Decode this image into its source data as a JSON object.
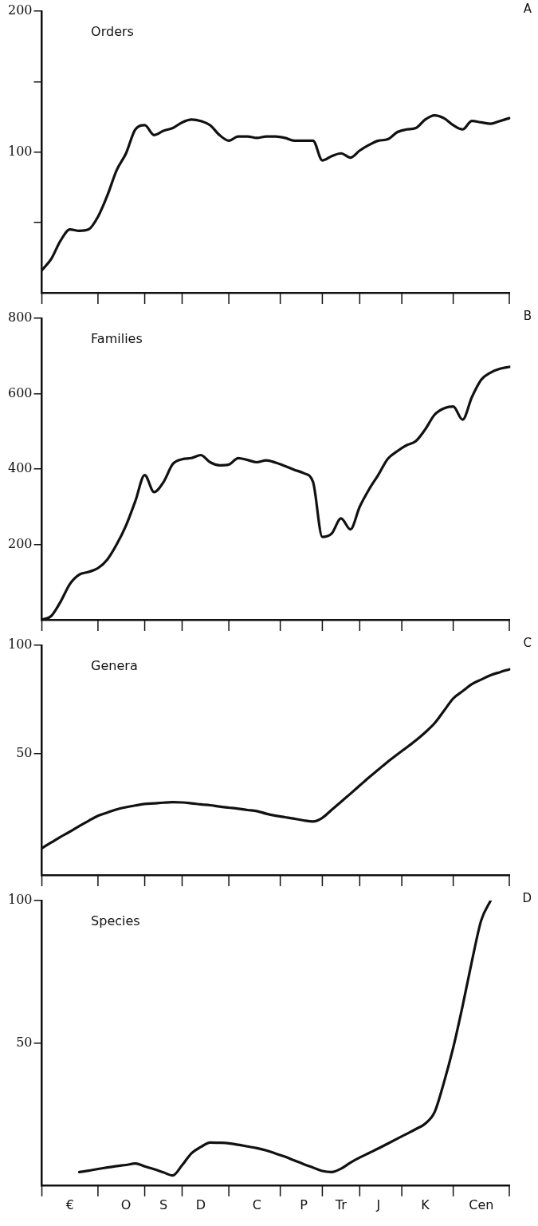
{
  "chart_data": [
    {
      "type": "line",
      "title": "Orders",
      "annotations": [
        "A"
      ],
      "ylim": [
        0,
        200
      ],
      "tick_labels": "y",
      "categories": [
        null,
        null,
        null,
        null,
        null,
        null,
        null,
        null,
        null,
        null,
        null,
        null,
        null,
        null,
        null,
        null,
        null,
        null,
        null,
        null,
        null,
        null,
        null,
        null,
        null,
        null,
        null,
        null,
        null,
        null,
        null,
        null,
        null,
        null,
        null,
        null,
        null,
        null,
        null,
        null,
        null,
        null,
        null,
        null,
        null,
        null,
        null,
        null,
        null,
        null,
        null
      ],
      "yticks": [
        {
          "value": 50,
          "label": null
        },
        100,
        {
          "value": 150,
          "label": null
        },
        200
      ],
      "series": [
        {
          "color": "#111111",
          "values": [
            16,
            24,
            37,
            45,
            44,
            45,
            54,
            69,
            87,
            99,
            116,
            119,
            112,
            115,
            117,
            121,
            123,
            122,
            119,
            112,
            108,
            111,
            111,
            110,
            111,
            111,
            110,
            108,
            108,
            108,
            94,
            97,
            99,
            96,
            101,
            105,
            108,
            109,
            114,
            116,
            117,
            123,
            126,
            124,
            119,
            116,
            122,
            121,
            120,
            122,
            124
          ]
        }
      ]
    },
    {
      "type": "line",
      "title": "Families",
      "annotations": [
        "B"
      ],
      "ylim": [
        0,
        800
      ],
      "tick_labels": "y",
      "categories": [
        null,
        null,
        null,
        null,
        null,
        null,
        null,
        null,
        null,
        null,
        null,
        null,
        null,
        null,
        null,
        null,
        null,
        null,
        null,
        null,
        null,
        null,
        null,
        null,
        null,
        null,
        null,
        null,
        null,
        null,
        null,
        null,
        null,
        null,
        null,
        null,
        null,
        null,
        null,
        null,
        null,
        null,
        null,
        null,
        null,
        null,
        null,
        null,
        null,
        null,
        null
      ],
      "yticks": [
        200,
        400,
        600,
        800
      ],
      "series": [
        {
          "color": "#111111",
          "values": [
            0,
            10,
            48,
            95,
            120,
            127,
            137,
            160,
            200,
            250,
            315,
            384,
            339,
            365,
            413,
            426,
            429,
            437,
            418,
            410,
            412,
            429,
            424,
            418,
            423,
            417,
            408,
            398,
            389,
            366,
            220,
            229,
            269,
            240,
            300,
            346,
            385,
            427,
            447,
            463,
            474,
            505,
            544,
            561,
            566,
            531,
            591,
            637,
            656,
            666,
            671
          ]
        }
      ]
    },
    {
      "type": "line",
      "title": "Genera",
      "annotations": [
        "C"
      ],
      "ylim": [
        -6,
        100
      ],
      "tick_labels": "y",
      "categories": [
        null,
        null,
        null,
        null,
        null,
        null,
        null,
        null,
        null,
        null,
        null,
        null,
        null,
        null,
        null,
        null,
        null,
        null,
        null,
        null,
        null,
        null,
        null,
        null,
        null,
        null,
        null,
        null,
        null,
        null,
        null,
        null,
        null,
        null,
        null,
        null,
        null,
        null,
        null,
        null,
        null,
        null,
        null,
        null,
        null,
        null,
        null,
        null,
        null,
        null,
        null
      ],
      "yticks": [
        50,
        100
      ],
      "series": [
        {
          "color": "#111111",
          "values": [
            6.4,
            9,
            11.6,
            14,
            16.6,
            19,
            21.3,
            22.8,
            24.3,
            25.3,
            26.1,
            26.8,
            27.1,
            27.4,
            27.6,
            27.5,
            27.1,
            26.6,
            26.2,
            25.6,
            25.1,
            24.6,
            24,
            23.5,
            22.3,
            21.4,
            20.7,
            20,
            19.2,
            18.7,
            20.4,
            24.1,
            27.8,
            31.5,
            35.3,
            39.1,
            42.7,
            46.3,
            49.6,
            52.8,
            56.1,
            59.8,
            64,
            69.7,
            75.5,
            78.8,
            82.1,
            84.2,
            86.2,
            87.6,
            88.9
          ]
        }
      ]
    },
    {
      "type": "line",
      "title": "Species",
      "annotations": [
        "D"
      ],
      "ylim": [
        0,
        100
      ],
      "categories": [
        null,
        null,
        null,
        "€",
        null,
        null,
        null,
        null,
        null,
        "O",
        null,
        null,
        null,
        "S",
        null,
        null,
        null,
        "D",
        null,
        null,
        null,
        null,
        null,
        "C",
        null,
        null,
        null,
        null,
        "P",
        null,
        null,
        null,
        "Tr",
        null,
        null,
        null,
        "J",
        null,
        null,
        null,
        null,
        "K",
        null,
        null,
        null,
        null,
        null,
        "Cen",
        null,
        null,
        null
      ],
      "yticks": [
        50,
        100
      ],
      "series": [
        {
          "color": "#111111",
          "values": [
            null,
            null,
            null,
            null,
            4.6,
            5.1,
            5.7,
            6.2,
            6.7,
            7.1,
            7.6,
            6.6,
            5.6,
            4.5,
            3.4,
            7,
            11.2,
            13.4,
            15,
            14.9,
            14.7,
            14.2,
            13.6,
            13,
            12.2,
            11.1,
            10,
            8.7,
            7.4,
            6.2,
            5,
            4.6,
            5.8,
            7.9,
            9.7,
            11.3,
            12.9,
            14.6,
            16.3,
            18,
            19.7,
            21.6,
            25.6,
            36,
            48.3,
            62.9,
            78.7,
            93.1,
            100,
            null,
            null
          ]
        }
      ]
    }
  ]
}
